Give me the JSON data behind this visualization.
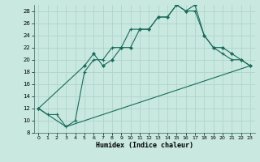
{
  "xlabel": "Humidex (Indice chaleur)",
  "background_color": "#c8e8e0",
  "line_color": "#1a6b5a",
  "grid_color": "#b0d4cc",
  "x_min": -0.5,
  "x_max": 23.5,
  "y_min": 8,
  "y_max": 29,
  "yticks": [
    8,
    10,
    12,
    14,
    16,
    18,
    20,
    22,
    24,
    26,
    28
  ],
  "xticks": [
    0,
    1,
    2,
    3,
    4,
    5,
    6,
    7,
    8,
    9,
    10,
    11,
    12,
    13,
    14,
    15,
    16,
    17,
    18,
    19,
    20,
    21,
    22,
    23
  ],
  "series1_x": [
    0,
    1,
    2,
    3,
    4,
    5,
    6,
    7,
    8,
    9,
    10,
    11,
    12,
    13,
    14,
    15,
    16,
    17,
    18,
    19,
    20,
    21,
    22,
    23
  ],
  "series1_y": [
    12,
    11,
    11,
    9,
    10,
    18,
    20,
    20,
    22,
    22,
    25,
    25,
    25,
    27,
    27,
    29,
    28,
    28,
    24,
    22,
    21,
    20,
    20,
    19
  ],
  "series2_x": [
    0,
    5,
    6,
    7,
    8,
    9,
    10,
    11,
    12,
    13,
    14,
    15,
    16,
    17,
    18,
    19,
    20,
    21,
    22,
    23
  ],
  "series2_y": [
    12,
    19,
    21,
    19,
    20,
    22,
    22,
    25,
    25,
    27,
    27,
    29,
    28,
    29,
    24,
    22,
    22,
    21,
    20,
    19
  ],
  "series3_x": [
    0,
    3,
    23
  ],
  "series3_y": [
    12,
    9,
    19
  ]
}
